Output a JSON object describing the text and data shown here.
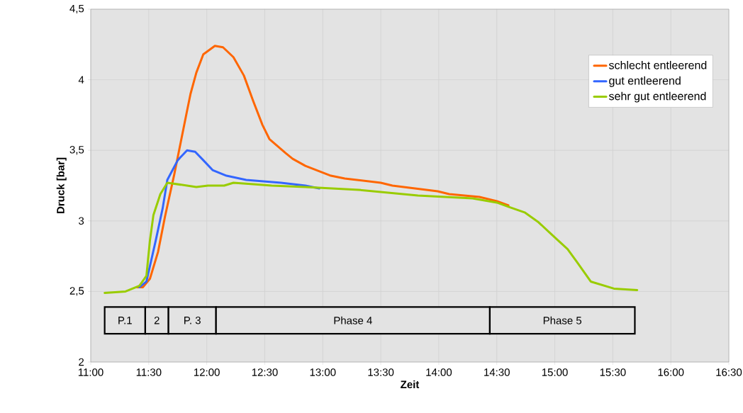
{
  "chart_data": {
    "type": "line",
    "xlabel": "Zeit",
    "ylabel": "Druck [bar]",
    "xlim": [
      11,
      16.5
    ],
    "xticks": [
      {
        "value": 11,
        "label": "11:00"
      },
      {
        "value": 11.5,
        "label": "11:30"
      },
      {
        "value": 12,
        "label": "12:00"
      },
      {
        "value": 12.5,
        "label": "12:30"
      },
      {
        "value": 13,
        "label": "13:00"
      },
      {
        "value": 13.5,
        "label": "13:30"
      },
      {
        "value": 14,
        "label": "14:00"
      },
      {
        "value": 14.5,
        "label": "14:30"
      },
      {
        "value": 15,
        "label": "15:00"
      },
      {
        "value": 15.5,
        "label": "15:30"
      },
      {
        "value": 16,
        "label": "16:00"
      },
      {
        "value": 16.5,
        "label": "16:30"
      }
    ],
    "ylim": [
      2,
      4.5
    ],
    "yticks": [
      {
        "value": 2,
        "label": "2"
      },
      {
        "value": 2.5,
        "label": "2,5"
      },
      {
        "value": 3,
        "label": "3"
      },
      {
        "value": 3.5,
        "label": "3,5"
      },
      {
        "value": 4,
        "label": "4"
      },
      {
        "value": 4.5,
        "label": "4,5"
      }
    ],
    "grid": true,
    "legend": "top right",
    "marker": "none",
    "line_style": "solid",
    "bands": [
      {
        "axis": "x",
        "from": 11.12,
        "to": 11.47,
        "label": "P.1",
        "color": "#e3e3e3"
      },
      {
        "axis": "x",
        "from": 11.47,
        "to": 11.67,
        "label": "2",
        "color": "#e3e3e3"
      },
      {
        "axis": "x",
        "from": 11.67,
        "to": 12.08,
        "label": "P. 3",
        "color": "#e3e3e3"
      },
      {
        "axis": "x",
        "from": 12.08,
        "to": 14.44,
        "label": "Phase 4",
        "color": "#e3e3e3"
      },
      {
        "axis": "x",
        "from": 14.44,
        "to": 15.69,
        "label": "Phase 5",
        "color": "#e3e3e3"
      }
    ],
    "series": [
      {
        "name": "schlecht entleerend",
        "color": "#ff6600",
        "x": [
          11.4,
          11.45,
          11.51,
          11.58,
          11.64,
          11.72,
          11.83,
          11.86,
          11.91,
          11.97,
          12.07,
          12.14,
          12.23,
          12.32,
          12.4,
          12.48,
          12.54,
          12.68,
          12.74,
          12.85,
          13.07,
          13.19,
          13.5,
          13.6,
          13.99,
          14.09,
          14.35,
          14.5,
          14.6
        ],
        "values": [
          2.53,
          2.53,
          2.59,
          2.78,
          3.03,
          3.33,
          3.78,
          3.9,
          4.05,
          4.18,
          4.24,
          4.23,
          4.16,
          4.03,
          3.85,
          3.68,
          3.58,
          3.48,
          3.44,
          3.39,
          3.32,
          3.3,
          3.27,
          3.25,
          3.21,
          3.19,
          3.17,
          3.14,
          3.11
        ]
      },
      {
        "name": "gut entleerend",
        "color": "#3366ff",
        "x": [
          11.42,
          11.48,
          11.56,
          11.62,
          11.66,
          11.75,
          11.83,
          11.9,
          11.97,
          12.05,
          12.17,
          12.34,
          12.64,
          12.85,
          12.97
        ],
        "values": [
          2.53,
          2.57,
          2.86,
          3.09,
          3.29,
          3.43,
          3.5,
          3.49,
          3.43,
          3.36,
          3.32,
          3.29,
          3.27,
          3.25,
          3.23
        ]
      },
      {
        "name": "sehr gut entleerend",
        "color": "#99cc00",
        "x": [
          11.12,
          11.3,
          11.42,
          11.48,
          11.51,
          11.54,
          11.6,
          11.66,
          11.83,
          11.91,
          12.01,
          12.15,
          12.23,
          12.4,
          12.56,
          12.85,
          13.31,
          13.82,
          14.29,
          14.5,
          14.6,
          14.74,
          14.86,
          14.99,
          15.11,
          15.19,
          15.31,
          15.51,
          15.71
        ],
        "values": [
          2.49,
          2.5,
          2.54,
          2.61,
          2.86,
          3.04,
          3.19,
          3.27,
          3.25,
          3.24,
          3.25,
          3.25,
          3.27,
          3.26,
          3.25,
          3.24,
          3.22,
          3.18,
          3.16,
          3.13,
          3.1,
          3.06,
          2.99,
          2.89,
          2.8,
          2.71,
          2.57,
          2.52,
          2.51
        ]
      }
    ]
  }
}
